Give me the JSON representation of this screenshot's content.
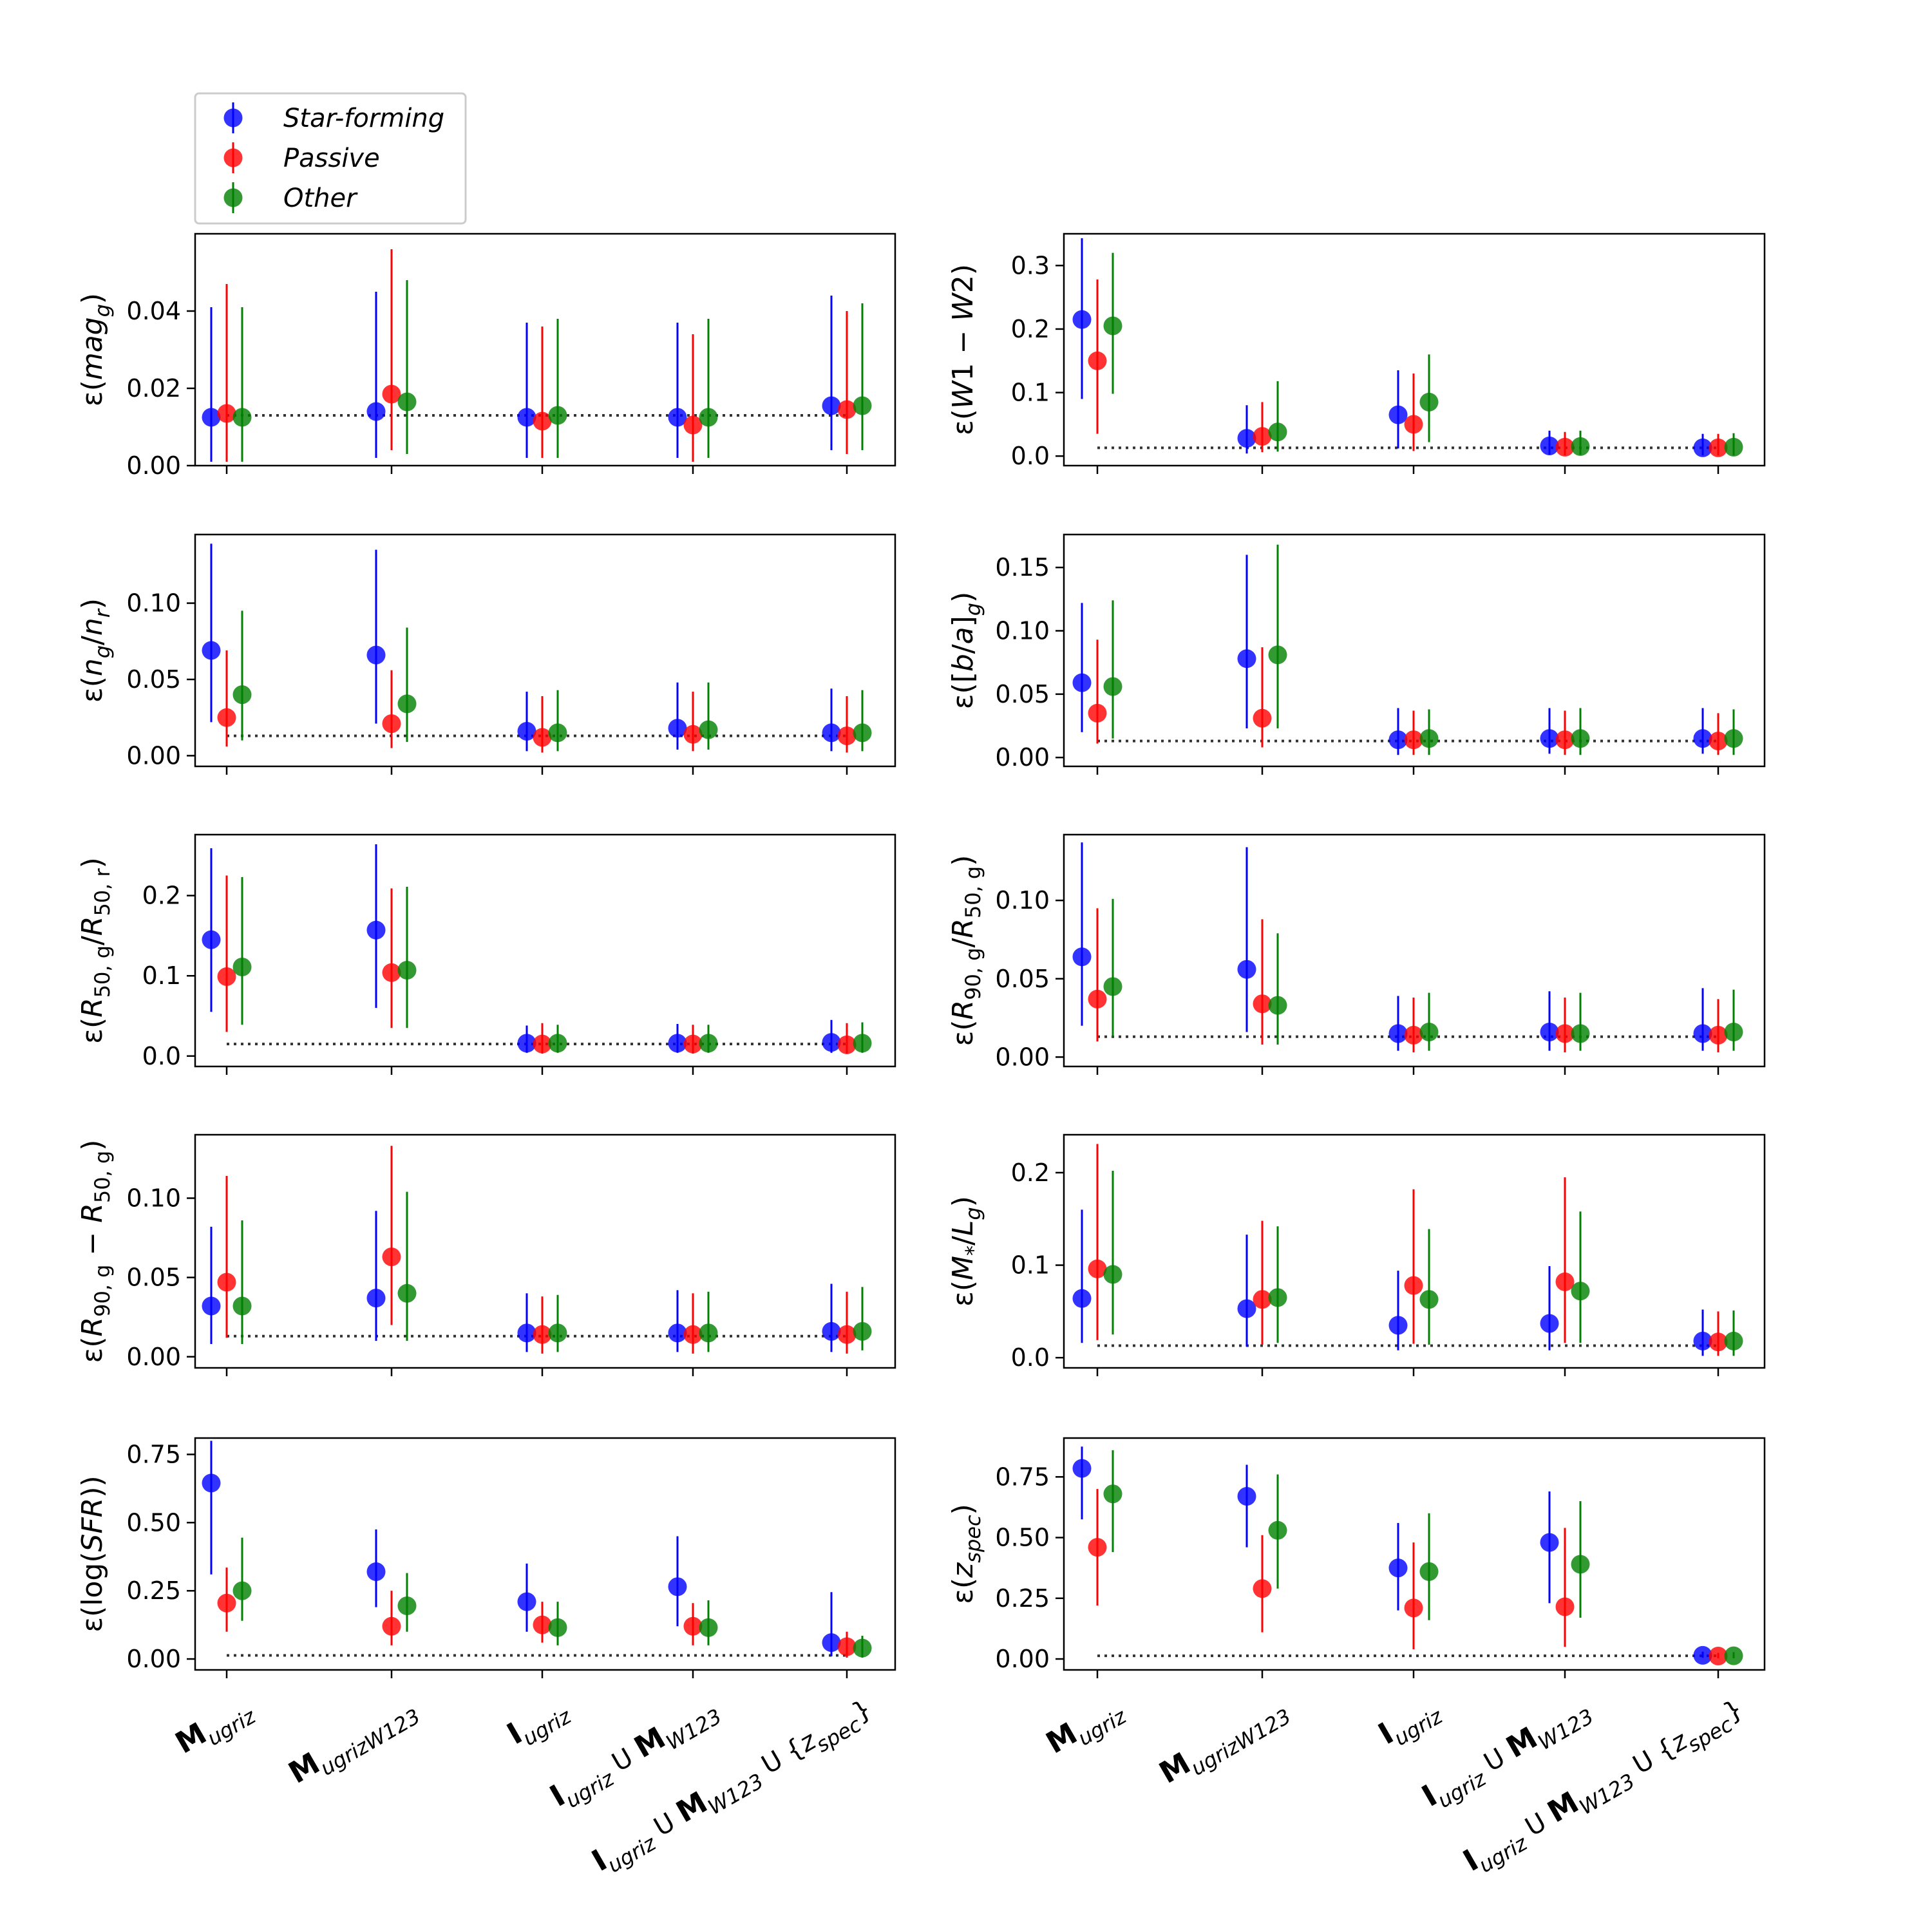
{
  "legend": {
    "entries": [
      {
        "label": "Star-forming",
        "color": "#0000ff"
      },
      {
        "label": "Passive",
        "color": "#ff0000"
      },
      {
        "label": "Other",
        "color": "#008000"
      }
    ]
  },
  "x_categories": [
    {
      "main": "M",
      "sub": "ugriz",
      "rest": []
    },
    {
      "main": "M",
      "sub": "ugrizW123",
      "rest": []
    },
    {
      "main": "I",
      "sub": "ugriz",
      "rest": []
    },
    {
      "main": "I",
      "sub": "ugriz",
      "rest": [
        {
          "t": " U "
        },
        {
          "main": "M",
          "sub": "W123"
        }
      ]
    },
    {
      "main": "I",
      "sub": "ugriz",
      "rest": [
        {
          "t": " U "
        },
        {
          "main": "M",
          "sub": "W123"
        },
        {
          "t": " U {"
        },
        {
          "ital": "z",
          "sub": "spec"
        },
        {
          "t": "}"
        }
      ]
    }
  ],
  "chart_data": [
    {
      "type": "scatter",
      "panel": "left-1",
      "ylabel": "ε(mag_g)",
      "ylim": [
        0,
        0.06
      ],
      "yticks": [
        0,
        0.02,
        0.04
      ],
      "ytick_labels": [
        "0.00",
        "0.02",
        "0.04"
      ],
      "reference_line": 0.013,
      "series": [
        {
          "name": "Star-forming",
          "values": [
            0.0125,
            0.014,
            0.0125,
            0.0125,
            0.0155
          ],
          "lower": [
            0.001,
            0.002,
            0.002,
            0.002,
            0.004
          ],
          "upper": [
            0.041,
            0.045,
            0.037,
            0.037,
            0.044
          ]
        },
        {
          "name": "Passive",
          "values": [
            0.0135,
            0.0185,
            0.0115,
            0.0105,
            0.0145
          ],
          "lower": [
            0.001,
            0.004,
            0.002,
            0.001,
            0.003
          ],
          "upper": [
            0.047,
            0.056,
            0.036,
            0.034,
            0.04
          ]
        },
        {
          "name": "Other",
          "values": [
            0.0125,
            0.0165,
            0.013,
            0.0125,
            0.0155
          ],
          "lower": [
            0.001,
            0.003,
            0.002,
            0.002,
            0.004
          ],
          "upper": [
            0.041,
            0.048,
            0.038,
            0.038,
            0.042
          ]
        }
      ]
    },
    {
      "type": "scatter",
      "panel": "right-1",
      "ylabel": "ε(W1 − W2)",
      "ylim": [
        -0.015,
        0.35
      ],
      "yticks": [
        0,
        0.1,
        0.2,
        0.3
      ],
      "ytick_labels": [
        "0.0",
        "0.1",
        "0.2",
        "0.3"
      ],
      "reference_line": 0.013,
      "series": [
        {
          "name": "Star-forming",
          "values": [
            0.215,
            0.028,
            0.065,
            0.016,
            0.013
          ],
          "lower": [
            0.09,
            0.004,
            0.012,
            0.002,
            0.001
          ],
          "upper": [
            0.343,
            0.08,
            0.135,
            0.04,
            0.035
          ]
        },
        {
          "name": "Passive",
          "values": [
            0.15,
            0.031,
            0.05,
            0.014,
            0.013
          ],
          "lower": [
            0.035,
            0.006,
            0.008,
            0.001,
            0.001
          ],
          "upper": [
            0.278,
            0.085,
            0.13,
            0.038,
            0.035
          ]
        },
        {
          "name": "Other",
          "values": [
            0.205,
            0.038,
            0.085,
            0.015,
            0.014
          ],
          "lower": [
            0.098,
            0.007,
            0.022,
            0.002,
            0.001
          ],
          "upper": [
            0.32,
            0.118,
            0.16,
            0.04,
            0.036
          ]
        }
      ]
    },
    {
      "type": "scatter",
      "panel": "left-2",
      "ylabel": "ε(n_g/n_r)",
      "ylim": [
        -0.007,
        0.145
      ],
      "yticks": [
        0,
        0.05,
        0.1
      ],
      "ytick_labels": [
        "0.00",
        "0.05",
        "0.10"
      ],
      "reference_line": 0.013,
      "series": [
        {
          "name": "Star-forming",
          "values": [
            0.069,
            0.066,
            0.016,
            0.018,
            0.015
          ],
          "lower": [
            0.022,
            0.021,
            0.003,
            0.004,
            0.003
          ],
          "upper": [
            0.139,
            0.135,
            0.042,
            0.048,
            0.044
          ]
        },
        {
          "name": "Passive",
          "values": [
            0.025,
            0.021,
            0.012,
            0.014,
            0.013
          ],
          "lower": [
            0.006,
            0.005,
            0.002,
            0.003,
            0.002
          ],
          "upper": [
            0.069,
            0.056,
            0.039,
            0.042,
            0.039
          ]
        },
        {
          "name": "Other",
          "values": [
            0.04,
            0.034,
            0.015,
            0.017,
            0.015
          ],
          "lower": [
            0.01,
            0.009,
            0.003,
            0.004,
            0.003
          ],
          "upper": [
            0.095,
            0.084,
            0.043,
            0.048,
            0.043
          ]
        }
      ]
    },
    {
      "type": "scatter",
      "panel": "right-2",
      "ylabel": "ε([b/a]_g)",
      "ylim": [
        -0.007,
        0.176
      ],
      "yticks": [
        0,
        0.05,
        0.1,
        0.15
      ],
      "ytick_labels": [
        "0.00",
        "0.05",
        "0.10",
        "0.15"
      ],
      "reference_line": 0.013,
      "series": [
        {
          "name": "Star-forming",
          "values": [
            0.059,
            0.078,
            0.014,
            0.015,
            0.015
          ],
          "lower": [
            0.02,
            0.023,
            0.002,
            0.003,
            0.003
          ],
          "upper": [
            0.122,
            0.16,
            0.039,
            0.039,
            0.039
          ]
        },
        {
          "name": "Passive",
          "values": [
            0.035,
            0.031,
            0.014,
            0.014,
            0.013
          ],
          "lower": [
            0.011,
            0.008,
            0.002,
            0.002,
            0.002
          ],
          "upper": [
            0.093,
            0.087,
            0.037,
            0.037,
            0.035
          ]
        },
        {
          "name": "Other",
          "values": [
            0.056,
            0.081,
            0.015,
            0.015,
            0.015
          ],
          "lower": [
            0.015,
            0.023,
            0.002,
            0.002,
            0.002
          ],
          "upper": [
            0.124,
            0.168,
            0.038,
            0.039,
            0.038
          ]
        }
      ]
    },
    {
      "type": "scatter",
      "panel": "left-3",
      "ylabel": "ε(R_50,g/R_50,r)",
      "ylim": [
        -0.013,
        0.276
      ],
      "yticks": [
        0,
        0.1,
        0.2
      ],
      "ytick_labels": [
        "0.0",
        "0.1",
        "0.2"
      ],
      "reference_line": 0.015,
      "series": [
        {
          "name": "Star-forming",
          "values": [
            0.145,
            0.157,
            0.016,
            0.016,
            0.017
          ],
          "lower": [
            0.055,
            0.06,
            0.004,
            0.004,
            0.004
          ],
          "upper": [
            0.259,
            0.264,
            0.038,
            0.04,
            0.045
          ]
        },
        {
          "name": "Passive",
          "values": [
            0.099,
            0.104,
            0.015,
            0.015,
            0.014
          ],
          "lower": [
            0.03,
            0.035,
            0.003,
            0.003,
            0.003
          ],
          "upper": [
            0.225,
            0.209,
            0.041,
            0.039,
            0.041
          ]
        },
        {
          "name": "Other",
          "values": [
            0.111,
            0.107,
            0.016,
            0.016,
            0.016
          ],
          "lower": [
            0.039,
            0.035,
            0.004,
            0.004,
            0.004
          ],
          "upper": [
            0.223,
            0.211,
            0.039,
            0.039,
            0.042
          ]
        }
      ]
    },
    {
      "type": "scatter",
      "panel": "right-3",
      "ylabel": "ε(R_90,g/R_50,g)",
      "ylim": [
        -0.006,
        0.142
      ],
      "yticks": [
        0,
        0.05,
        0.1
      ],
      "ytick_labels": [
        "0.00",
        "0.05",
        "0.10"
      ],
      "reference_line": 0.013,
      "series": [
        {
          "name": "Star-forming",
          "values": [
            0.064,
            0.056,
            0.015,
            0.016,
            0.015
          ],
          "lower": [
            0.02,
            0.016,
            0.004,
            0.004,
            0.004
          ],
          "upper": [
            0.137,
            0.134,
            0.039,
            0.042,
            0.044
          ]
        },
        {
          "name": "Passive",
          "values": [
            0.037,
            0.034,
            0.014,
            0.015,
            0.014
          ],
          "lower": [
            0.01,
            0.008,
            0.003,
            0.003,
            0.003
          ],
          "upper": [
            0.095,
            0.088,
            0.038,
            0.038,
            0.037
          ]
        },
        {
          "name": "Other",
          "values": [
            0.045,
            0.033,
            0.016,
            0.015,
            0.016
          ],
          "lower": [
            0.013,
            0.008,
            0.004,
            0.004,
            0.004
          ],
          "upper": [
            0.101,
            0.079,
            0.041,
            0.041,
            0.043
          ]
        }
      ]
    },
    {
      "type": "scatter",
      "panel": "left-4",
      "ylabel": "ε(R_90,g − R_50,g)",
      "ylim": [
        -0.007,
        0.14
      ],
      "yticks": [
        0,
        0.05,
        0.1
      ],
      "ytick_labels": [
        "0.00",
        "0.05",
        "0.10"
      ],
      "reference_line": 0.013,
      "series": [
        {
          "name": "Star-forming",
          "values": [
            0.032,
            0.037,
            0.015,
            0.015,
            0.016
          ],
          "lower": [
            0.008,
            0.01,
            0.003,
            0.003,
            0.003
          ],
          "upper": [
            0.082,
            0.092,
            0.04,
            0.042,
            0.046
          ]
        },
        {
          "name": "Passive",
          "values": [
            0.047,
            0.063,
            0.014,
            0.014,
            0.014
          ],
          "lower": [
            0.012,
            0.02,
            0.002,
            0.002,
            0.002
          ],
          "upper": [
            0.114,
            0.133,
            0.038,
            0.04,
            0.041
          ]
        },
        {
          "name": "Other",
          "values": [
            0.032,
            0.04,
            0.015,
            0.015,
            0.016
          ],
          "lower": [
            0.008,
            0.01,
            0.003,
            0.003,
            0.004
          ],
          "upper": [
            0.086,
            0.104,
            0.039,
            0.041,
            0.044
          ]
        }
      ]
    },
    {
      "type": "scatter",
      "panel": "right-4",
      "ylabel": "ε(M_*/L_g)",
      "ylim": [
        -0.011,
        0.241
      ],
      "yticks": [
        0,
        0.1,
        0.2
      ],
      "ytick_labels": [
        "0.0",
        "0.1",
        "0.2"
      ],
      "reference_line": 0.013,
      "series": [
        {
          "name": "Star-forming",
          "values": [
            0.064,
            0.053,
            0.035,
            0.037,
            0.018
          ],
          "lower": [
            0.016,
            0.012,
            0.008,
            0.008,
            0.002
          ],
          "upper": [
            0.16,
            0.133,
            0.094,
            0.099,
            0.052
          ]
        },
        {
          "name": "Passive",
          "values": [
            0.096,
            0.063,
            0.078,
            0.082,
            0.017
          ],
          "lower": [
            0.019,
            0.014,
            0.015,
            0.016,
            0.002
          ],
          "upper": [
            0.231,
            0.148,
            0.182,
            0.195,
            0.05
          ]
        },
        {
          "name": "Other",
          "values": [
            0.09,
            0.065,
            0.063,
            0.072,
            0.018
          ],
          "lower": [
            0.025,
            0.016,
            0.014,
            0.016,
            0.002
          ],
          "upper": [
            0.202,
            0.142,
            0.139,
            0.158,
            0.051
          ]
        }
      ]
    },
    {
      "type": "scatter",
      "panel": "left-5",
      "ylabel": "ε(log(SFR))",
      "ylim": [
        -0.04,
        0.81
      ],
      "yticks": [
        0,
        0.25,
        0.5,
        0.75
      ],
      "ytick_labels": [
        "0.00",
        "0.25",
        "0.50",
        "0.75"
      ],
      "reference_line": 0.013,
      "series": [
        {
          "name": "Star-forming",
          "values": [
            0.645,
            0.32,
            0.21,
            0.265,
            0.06
          ],
          "lower": [
            0.31,
            0.19,
            0.1,
            0.12,
            0.01
          ],
          "upper": [
            0.8,
            0.475,
            0.35,
            0.45,
            0.245
          ]
        },
        {
          "name": "Passive",
          "values": [
            0.205,
            0.12,
            0.125,
            0.12,
            0.045
          ],
          "lower": [
            0.1,
            0.05,
            0.06,
            0.05,
            0.005
          ],
          "upper": [
            0.335,
            0.25,
            0.21,
            0.205,
            0.1
          ]
        },
        {
          "name": "Other",
          "values": [
            0.25,
            0.195,
            0.115,
            0.115,
            0.04
          ],
          "lower": [
            0.14,
            0.1,
            0.05,
            0.05,
            0.005
          ],
          "upper": [
            0.445,
            0.315,
            0.21,
            0.215,
            0.085
          ]
        }
      ]
    },
    {
      "type": "scatter",
      "panel": "right-5",
      "ylabel": "ε(z_spec)",
      "ylim": [
        -0.045,
        0.91
      ],
      "yticks": [
        0,
        0.25,
        0.5,
        0.75
      ],
      "ytick_labels": [
        "0.00",
        "0.25",
        "0.50",
        "0.75"
      ],
      "reference_line": 0.013,
      "series": [
        {
          "name": "Star-forming",
          "values": [
            0.785,
            0.67,
            0.375,
            0.48,
            0.015
          ],
          "lower": [
            0.575,
            0.46,
            0.2,
            0.23,
            0.005
          ],
          "upper": [
            0.875,
            0.8,
            0.56,
            0.69,
            0.03
          ]
        },
        {
          "name": "Passive",
          "values": [
            0.46,
            0.29,
            0.21,
            0.215,
            0.012
          ],
          "lower": [
            0.22,
            0.11,
            0.04,
            0.05,
            0.003
          ],
          "upper": [
            0.7,
            0.51,
            0.48,
            0.54,
            0.025
          ]
        },
        {
          "name": "Other",
          "values": [
            0.68,
            0.53,
            0.36,
            0.39,
            0.013
          ],
          "lower": [
            0.44,
            0.29,
            0.16,
            0.17,
            0.003
          ],
          "upper": [
            0.86,
            0.76,
            0.6,
            0.65,
            0.028
          ]
        }
      ]
    }
  ]
}
